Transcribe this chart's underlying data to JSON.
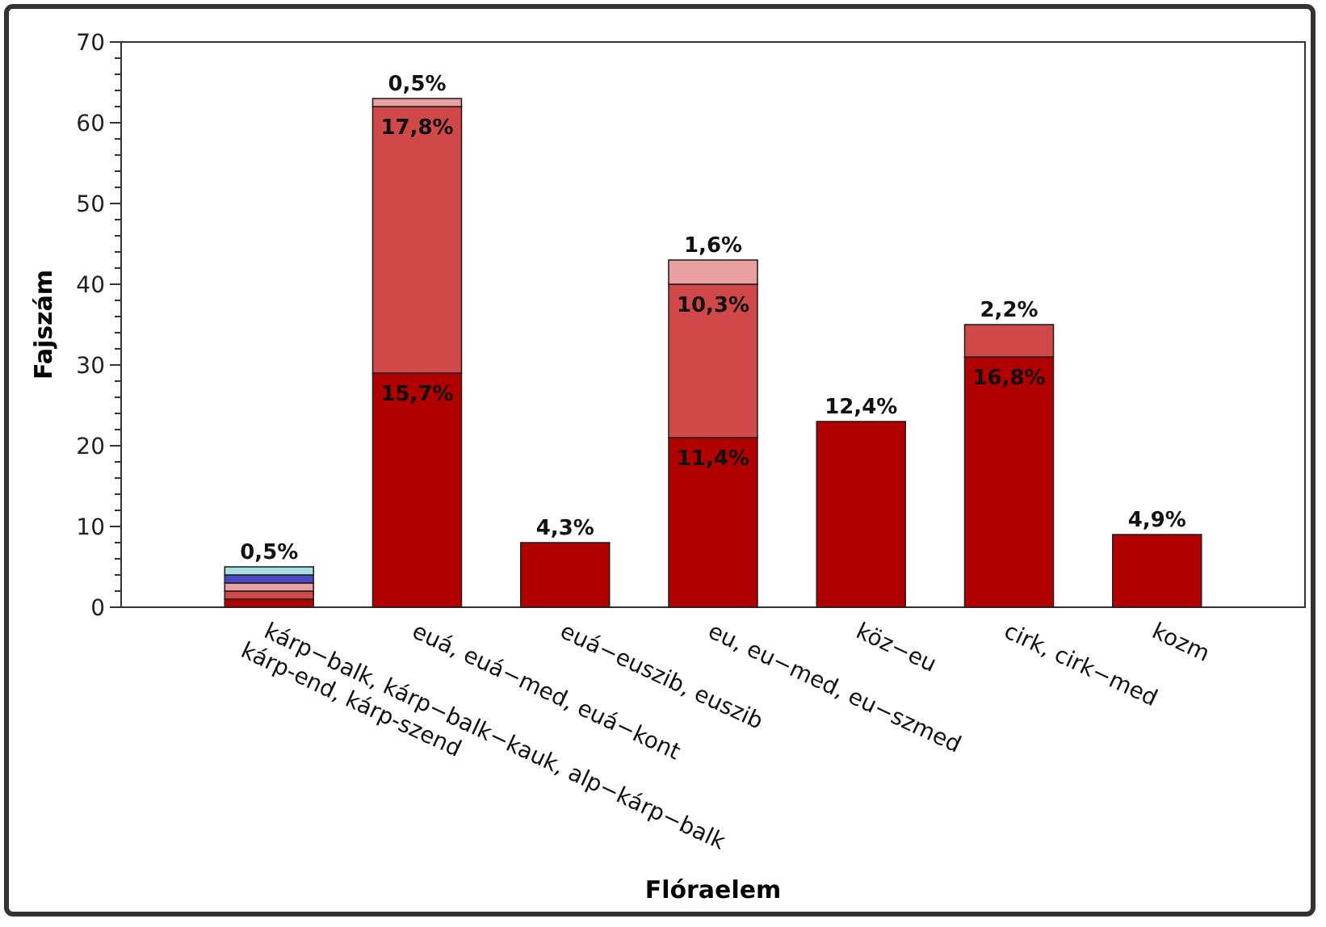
{
  "chart_data": {
    "type": "bar",
    "stacked": true,
    "xlabel": "Flóraelem",
    "ylabel": "Fajszám",
    "categories": [
      "kárp−balk, kárp−balk−kauk, alp−kárp−balk\nkárp-end, kárp-szend",
      "euá, euá−med, euá−kont",
      "euá−euszib, euszib",
      "eu, eu−med, eu−szmed",
      "köz−eu",
      "cirk, cirk−med",
      "kozm"
    ],
    "series": [
      {
        "color": "#b00000",
        "values": [
          1,
          29,
          8,
          21,
          23,
          31,
          9
        ]
      },
      {
        "color": "#d04848",
        "values": [
          1,
          33,
          0,
          19,
          0,
          4,
          0
        ]
      },
      {
        "color": "#e8a0a0",
        "values": [
          1,
          1,
          0,
          3,
          0,
          0,
          0
        ]
      },
      {
        "color": "#4848c8",
        "values": [
          1,
          0,
          0,
          0,
          0,
          0,
          0
        ]
      },
      {
        "color": "#a8e0e0",
        "values": [
          1,
          0,
          0,
          0,
          0,
          0,
          0
        ]
      }
    ],
    "annotations": [
      {
        "text": "0,5%",
        "x": "kárp−balk, kárp−balk−kauk, alp−kárp−balk\nkárp-end, kárp-szend",
        "y": 5
      },
      {
        "text": "15,7%",
        "x": "euá, euá−med, euá−kont",
        "y": 29
      },
      {
        "text": "17,8%",
        "x": "euá, euá−med, euá−kont",
        "y": 62
      },
      {
        "text": "0,5%",
        "x": "euá, euá−med, euá−kont",
        "y": 63
      },
      {
        "text": "4,3%",
        "x": "euá−euszib, euszib",
        "y": 8
      },
      {
        "text": "11,4%",
        "x": "eu, eu−med, eu−szmed",
        "y": 21
      },
      {
        "text": "10,3%",
        "x": "eu, eu−med, eu−szmed",
        "y": 40
      },
      {
        "text": "1,6%",
        "x": "eu, eu−med, eu−szmed",
        "y": 43
      },
      {
        "text": "12,4%",
        "x": "köz−eu",
        "y": 23
      },
      {
        "text": "16,8%",
        "x": "cirk, cirk−med",
        "y": 31
      },
      {
        "text": "2,2%",
        "x": "cirk, cirk−med",
        "y": 35
      },
      {
        "text": "4,9%",
        "x": "kozm",
        "y": 9
      }
    ],
    "ylim": [
      0,
      70
    ],
    "yticks": [
      0,
      {
        "value": 2,
        "label": null
      },
      {
        "value": 4,
        "label": null
      },
      {
        "value": 6,
        "label": null
      },
      {
        "value": 8,
        "label": null
      },
      10,
      {
        "value": 12,
        "label": null
      },
      {
        "value": 14,
        "label": null
      },
      {
        "value": 16,
        "label": null
      },
      {
        "value": 18,
        "label": null
      },
      20,
      {
        "value": 22,
        "label": null
      },
      {
        "value": 24,
        "label": null
      },
      {
        "value": 26,
        "label": null
      },
      {
        "value": 28,
        "label": null
      },
      30,
      {
        "value": 32,
        "label": null
      },
      {
        "value": 34,
        "label": null
      },
      {
        "value": 36,
        "label": null
      },
      {
        "value": 38,
        "label": null
      },
      40,
      {
        "value": 42,
        "label": null
      },
      {
        "value": 44,
        "label": null
      },
      {
        "value": 46,
        "label": null
      },
      {
        "value": 48,
        "label": null
      },
      50,
      {
        "value": 52,
        "label": null
      },
      {
        "value": 54,
        "label": null
      },
      {
        "value": 56,
        "label": null
      },
      {
        "value": 58,
        "label": null
      },
      60,
      {
        "value": 62,
        "label": null
      },
      {
        "value": 64,
        "label": null
      },
      {
        "value": 66,
        "label": null
      },
      {
        "value": 68,
        "label": null
      },
      70
    ],
    "grid": false
  }
}
